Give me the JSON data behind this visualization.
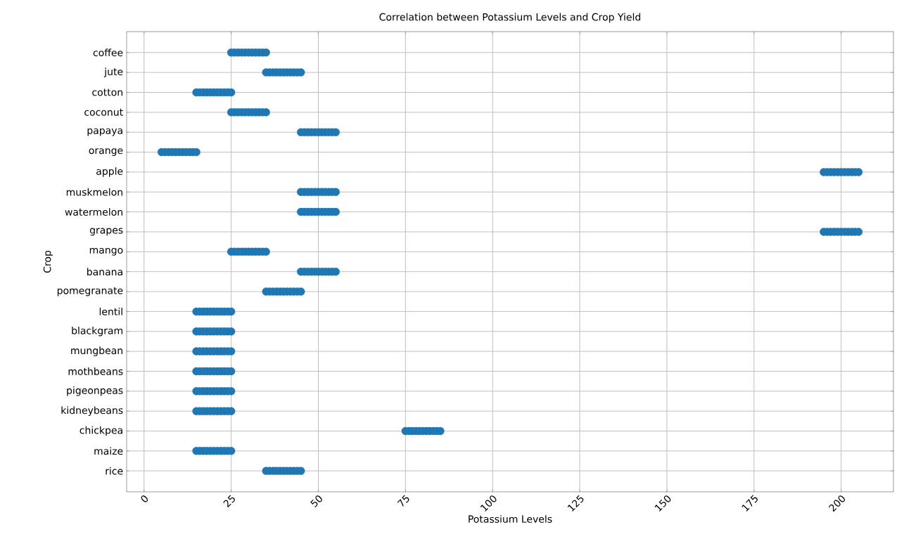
{
  "chart_data": {
    "type": "scatter",
    "title": "Correlation between Potassium Levels and Crop Yield",
    "xlabel": "Potassium Levels",
    "ylabel": "Crop",
    "orientation": "horizontal",
    "grid": true,
    "categories": [
      "coffee",
      "jute",
      "cotton",
      "coconut",
      "papaya",
      "orange",
      "apple",
      "muskmelon",
      "watermelon",
      "grapes",
      "mango",
      "banana",
      "pomegranate",
      "lentil",
      "blackgram",
      "mungbean",
      "mothbeans",
      "pigeonpeas",
      "kidneybeans",
      "chickpea",
      "maize",
      "rice"
    ],
    "xlim": [
      -5,
      215
    ],
    "xticks": [
      0,
      25,
      50,
      75,
      100,
      125,
      150,
      175,
      200
    ],
    "series": [
      {
        "color": "#1f77b4",
        "values": [
          25,
          35,
          15,
          25,
          45,
          5,
          195,
          45,
          45,
          195,
          25,
          45,
          35,
          15,
          15,
          15,
          15,
          15,
          15,
          75,
          15,
          35
        ]
      },
      {
        "color": "#1f77b4",
        "values": [
          26,
          36,
          16,
          26,
          46,
          6,
          196,
          46,
          46,
          196,
          26,
          46,
          36,
          16,
          16,
          16,
          16,
          16,
          16,
          76,
          16,
          36
        ]
      },
      {
        "color": "#1f77b4",
        "values": [
          27,
          37,
          17,
          27,
          47,
          7,
          197,
          47,
          47,
          197,
          27,
          47,
          37,
          17,
          17,
          17,
          17,
          17,
          17,
          77,
          17,
          37
        ]
      },
      {
        "color": "#1f77b4",
        "values": [
          28,
          38,
          18,
          28,
          48,
          8,
          198,
          48,
          48,
          198,
          28,
          48,
          38,
          18,
          18,
          18,
          18,
          18,
          18,
          78,
          18,
          38
        ]
      },
      {
        "color": "#1f77b4",
        "values": [
          29,
          39,
          19,
          29,
          49,
          9,
          199,
          49,
          49,
          199,
          29,
          49,
          39,
          19,
          19,
          19,
          19,
          19,
          19,
          79,
          19,
          39
        ]
      },
      {
        "color": "#1f77b4",
        "values": [
          30,
          40,
          20,
          30,
          50,
          10,
          200,
          50,
          50,
          200,
          30,
          50,
          40,
          20,
          20,
          20,
          20,
          20,
          20,
          80,
          20,
          40
        ]
      },
      {
        "color": "#1f77b4",
        "values": [
          31,
          41,
          21,
          31,
          51,
          11,
          201,
          51,
          51,
          201,
          31,
          51,
          41,
          21,
          21,
          21,
          21,
          21,
          21,
          81,
          21,
          41
        ]
      },
      {
        "color": "#1f77b4",
        "values": [
          32,
          42,
          22,
          32,
          52,
          12,
          202,
          52,
          52,
          202,
          32,
          52,
          42,
          22,
          22,
          22,
          22,
          22,
          22,
          82,
          22,
          42
        ]
      },
      {
        "color": "#1f77b4",
        "values": [
          33,
          43,
          23,
          33,
          53,
          13,
          203,
          53,
          53,
          203,
          33,
          53,
          43,
          23,
          23,
          23,
          23,
          23,
          23,
          83,
          23,
          43
        ]
      },
      {
        "color": "#1f77b4",
        "values": [
          34,
          44,
          24,
          34,
          54,
          14,
          204,
          54,
          54,
          204,
          34,
          54,
          44,
          24,
          24,
          24,
          24,
          24,
          24,
          84,
          24,
          44
        ]
      },
      {
        "color": "#1f77b4",
        "values": [
          35,
          45,
          25,
          35,
          55,
          15,
          205,
          55,
          55,
          205,
          35,
          55,
          45,
          25,
          25,
          25,
          25,
          25,
          25,
          85,
          25,
          45
        ]
      }
    ]
  }
}
